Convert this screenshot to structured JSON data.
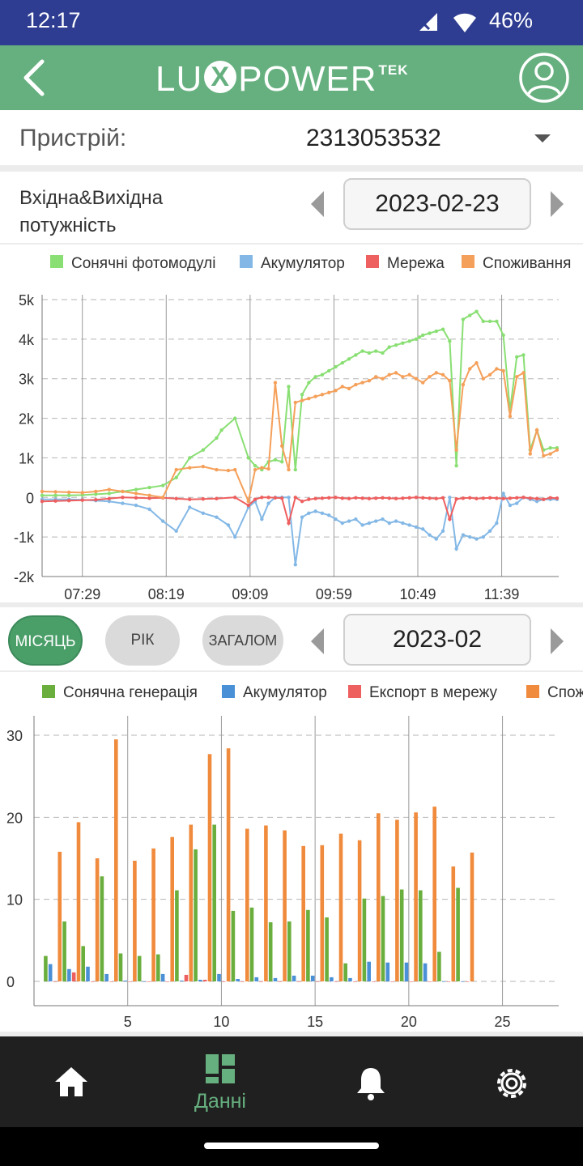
{
  "status_bar": {
    "time": "12:17",
    "battery": "46%"
  },
  "header": {
    "logo_left": "LU",
    "logo_x": "X",
    "logo_right": "POWER",
    "logo_tek": "TEK"
  },
  "device": {
    "label": "Пристрій:",
    "value": "2313053532"
  },
  "power_section": {
    "title_line1": "Вхідна&Вихідна",
    "title_line2": "потужність",
    "date": "2023-02-23"
  },
  "period_tabs": {
    "month": "МІСЯЦЬ",
    "year": "РІК",
    "total": "ЗАГАЛОМ",
    "period_value": "2023-02"
  },
  "nav": {
    "data_label": "Данні"
  },
  "colors": {
    "green": "#89df73",
    "blue": "#83b8e6",
    "red": "#ee5f5f",
    "orange": "#f5a05a",
    "bar_green": "#6aaf3e",
    "bar_blue": "#4a90d6",
    "bar_red": "#ee5f5f",
    "bar_orange": "#f08a3c",
    "accent": "#66b07f"
  },
  "chart_data": [
    {
      "type": "line",
      "legend": [
        "Сонячні фотомодулі",
        "Акумулятор",
        "Мережа",
        "Споживання"
      ],
      "x_tick_labels": [
        "07:29",
        "08:19",
        "09:09",
        "09:59",
        "10:49",
        "11:39"
      ],
      "x_tick_minutes": [
        449,
        499,
        549,
        599,
        649,
        699
      ],
      "x_range_minutes": [
        425,
        733
      ],
      "y_tick_labels": [
        "5k",
        "4k",
        "3k",
        "2k",
        "1k",
        "0",
        "-1k",
        "-2k"
      ],
      "ylim": [
        -2000,
        5000
      ],
      "series": [
        {
          "name": "Сонячні фотомодулі",
          "x_minutes": [
            425,
            433,
            441,
            449,
            457,
            465,
            473,
            481,
            489,
            497,
            505,
            513,
            521,
            529,
            532,
            540,
            548,
            552,
            556,
            560,
            564,
            568,
            572,
            576,
            580,
            584,
            588,
            592,
            596,
            600,
            604,
            608,
            612,
            616,
            620,
            624,
            628,
            632,
            636,
            640,
            644,
            648,
            650,
            652,
            656,
            660,
            664,
            668,
            672,
            676,
            680,
            684,
            688,
            692,
            696,
            700,
            704,
            708,
            712,
            716,
            720,
            724,
            728,
            732
          ],
          "values": [
            50,
            50,
            50,
            60,
            80,
            100,
            150,
            200,
            250,
            300,
            500,
            1000,
            1200,
            1500,
            1700,
            2000,
            1000,
            800,
            700,
            900,
            950,
            900,
            2800,
            700,
            2600,
            2900,
            3050,
            3100,
            3200,
            3300,
            3400,
            3500,
            3600,
            3700,
            3650,
            3700,
            3650,
            3800,
            3850,
            3900,
            3950,
            4000,
            4050,
            4100,
            4150,
            4200,
            4250,
            3950,
            800,
            4500,
            4600,
            4700,
            4450,
            4450,
            4450,
            4100,
            2200,
            3550,
            3600,
            1200,
            1700,
            1200,
            1250,
            1250
          ]
        },
        {
          "name": "Акумулятор",
          "x_minutes": [
            425,
            433,
            441,
            449,
            457,
            465,
            473,
            481,
            489,
            497,
            505,
            513,
            521,
            529,
            536,
            540,
            548,
            552,
            556,
            560,
            564,
            568,
            572,
            576,
            580,
            584,
            588,
            592,
            596,
            600,
            604,
            608,
            612,
            616,
            620,
            624,
            628,
            632,
            636,
            640,
            644,
            648,
            652,
            656,
            660,
            664,
            668,
            672,
            676,
            680,
            684,
            688,
            692,
            696,
            700,
            704,
            708,
            712,
            716,
            720,
            724,
            728,
            732
          ],
          "values": [
            -50,
            -50,
            -50,
            -60,
            -80,
            -100,
            -150,
            -200,
            -300,
            -600,
            -850,
            -250,
            -400,
            -500,
            -700,
            -1000,
            -250,
            -100,
            -550,
            -150,
            0,
            0,
            0,
            -1700,
            -500,
            -400,
            -350,
            -400,
            -450,
            -550,
            -650,
            -600,
            -550,
            -700,
            -650,
            -600,
            -550,
            -650,
            -600,
            -650,
            -700,
            -750,
            -800,
            -950,
            -1050,
            -850,
            0,
            -1300,
            -950,
            -1000,
            -1050,
            -1000,
            -850,
            -650,
            100,
            -200,
            -150,
            0,
            -50,
            -100,
            -50,
            -50,
            -50
          ]
        },
        {
          "name": "Мережа",
          "x_minutes": [
            425,
            433,
            441,
            449,
            457,
            465,
            473,
            481,
            489,
            497,
            505,
            513,
            521,
            529,
            540,
            548,
            552,
            556,
            560,
            564,
            568,
            572,
            576,
            580,
            584,
            588,
            592,
            596,
            600,
            604,
            608,
            612,
            616,
            620,
            624,
            628,
            632,
            636,
            640,
            644,
            648,
            652,
            656,
            660,
            664,
            668,
            672,
            676,
            680,
            684,
            688,
            692,
            696,
            700,
            704,
            708,
            712,
            716,
            720,
            724,
            728,
            732
          ],
          "values": [
            -100,
            -90,
            -80,
            -70,
            -60,
            -30,
            0,
            -10,
            -20,
            -10,
            -30,
            -50,
            -40,
            -30,
            0,
            -200,
            -50,
            0,
            0,
            -10,
            -20,
            -650,
            0,
            -100,
            -50,
            -30,
            -20,
            -10,
            0,
            -20,
            -30,
            -10,
            -20,
            -30,
            -20,
            -10,
            -20,
            -30,
            -20,
            -10,
            0,
            -10,
            -20,
            -30,
            -10,
            -550,
            -40,
            -20,
            -10,
            -30,
            -20,
            -10,
            -20,
            -30,
            -20,
            -10,
            0,
            -20,
            -30,
            -50,
            -10,
            -20
          ]
        },
        {
          "name": "Споживання",
          "x_minutes": [
            425,
            433,
            441,
            449,
            457,
            465,
            473,
            481,
            489,
            497,
            505,
            513,
            521,
            529,
            536,
            540,
            548,
            552,
            556,
            560,
            564,
            568,
            572,
            576,
            580,
            584,
            588,
            592,
            596,
            600,
            604,
            608,
            612,
            616,
            620,
            624,
            628,
            632,
            636,
            640,
            644,
            648,
            652,
            656,
            660,
            664,
            668,
            672,
            676,
            680,
            684,
            688,
            692,
            696,
            700,
            704,
            708,
            712,
            716,
            720,
            724,
            728,
            732
          ],
          "values": [
            150,
            140,
            130,
            120,
            150,
            200,
            150,
            100,
            50,
            0,
            700,
            750,
            780,
            700,
            680,
            700,
            -100,
            700,
            750,
            720,
            2900,
            1300,
            700,
            2400,
            2450,
            2500,
            2550,
            2600,
            2650,
            2700,
            2800,
            2750,
            2850,
            2900,
            2950,
            3050,
            3000,
            3100,
            3150,
            3050,
            3100,
            3000,
            2900,
            3050,
            3150,
            3100,
            2950,
            1200,
            2850,
            3250,
            3400,
            3000,
            3100,
            3250,
            3200,
            2050,
            3050,
            3150,
            1100,
            1700,
            1050,
            1100,
            1200
          ]
        }
      ]
    },
    {
      "type": "bar",
      "legend": [
        "Сонячна генерація",
        "Акумулятор",
        "Експорт в мережу",
        "Споживання"
      ],
      "x_tick_labels": [
        "5",
        "10",
        "15",
        "20",
        "25"
      ],
      "x_range": [
        0,
        28
      ],
      "y_tick_labels": [
        "30",
        "20",
        "10",
        "0"
      ],
      "ylim": [
        0,
        30
      ],
      "categories": [
        1,
        2,
        3,
        4,
        5,
        6,
        7,
        8,
        9,
        10,
        11,
        12,
        13,
        14,
        15,
        16,
        17,
        18,
        19,
        20,
        21,
        22,
        23
      ],
      "series": [
        {
          "name": "Сонячна генерація",
          "values": [
            3.1,
            7.3,
            4.3,
            12.8,
            3.4,
            3.1,
            3.3,
            11.1,
            16.1,
            19.1,
            8.6,
            9.0,
            7.2,
            7.3,
            8.7,
            7.8,
            2.2,
            10.1,
            10.4,
            11.2,
            11.1,
            3.6,
            11.4
          ]
        },
        {
          "name": "Акумулятор",
          "values": [
            2.1,
            1.5,
            1.8,
            0.9,
            0.1,
            0.0,
            0.9,
            0.1,
            0.2,
            0.9,
            0.3,
            0.5,
            0.4,
            0.7,
            0.7,
            0.5,
            0.4,
            2.4,
            2.3,
            2.3,
            2.2,
            0.0,
            0.0
          ]
        },
        {
          "name": "Експорт в мережу",
          "values": [
            0.0,
            1.1,
            0.0,
            0.0,
            0.0,
            0.0,
            0.0,
            0.8,
            0.2,
            0.0,
            0.0,
            0.0,
            0.0,
            0.0,
            0.0,
            0.0,
            0.0,
            0.0,
            0.0,
            0.0,
            0.0,
            0.0,
            0.0
          ]
        },
        {
          "name": "Споживання",
          "values": [
            15.8,
            19.4,
            15.0,
            29.5,
            14.7,
            16.2,
            17.6,
            19.1,
            27.7,
            28.4,
            18.6,
            19.0,
            18.4,
            16.5,
            16.6,
            18.0,
            17.2,
            20.5,
            19.7,
            20.6,
            21.3,
            14.0,
            15.7
          ]
        }
      ]
    }
  ]
}
